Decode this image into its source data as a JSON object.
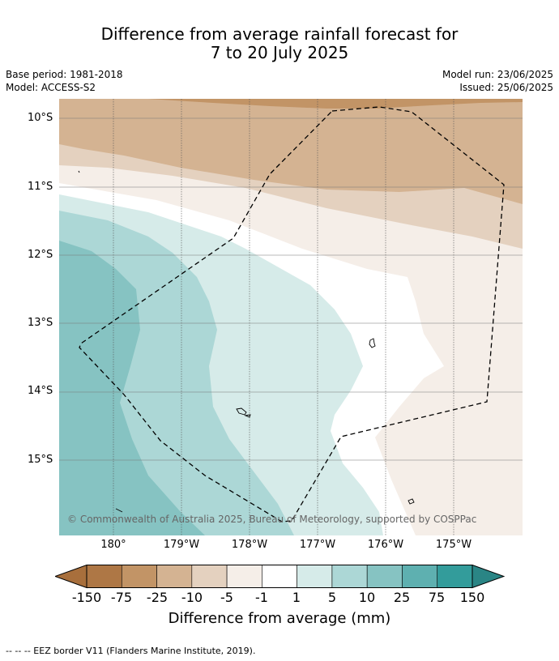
{
  "title_line1": "Difference from average rainfall forecast for",
  "title_line2": "7 to 20 July 2025",
  "meta_left": [
    "Base period: 1981-2018",
    "Model: ACCESS-S2"
  ],
  "meta_right": [
    "Model run: 23/06/2025",
    "Issued: 25/06/2025"
  ],
  "lat_labels": [
    "10°S",
    "11°S",
    "12°S",
    "13°S",
    "14°S",
    "15°S"
  ],
  "lon_labels": [
    "180°",
    "179°W",
    "178°W",
    "177°W",
    "176°W",
    "175°W"
  ],
  "copyright": "© Commonwealth of Australia 2025, Bureau of Meteorology, supported by COSPPac",
  "colorbar": {
    "ticks": [
      "-150",
      "-75",
      "-25",
      "-10",
      "-5",
      "-1",
      "1",
      "5",
      "10",
      "25",
      "75",
      "150"
    ],
    "colors": [
      "#a86f3c",
      "#ae7745",
      "#c29466",
      "#d4b392",
      "#e4d1bf",
      "#f5eee8",
      "#ffffff",
      "#d6ebe9",
      "#acd7d6",
      "#86c3c2",
      "#5eb0b0",
      "#339c9b",
      "#2a8585"
    ],
    "label": "Difference from average (mm)"
  },
  "footer": "--  --  -- EEZ border V11 (Flanders Marine Institute, 2019)."
}
